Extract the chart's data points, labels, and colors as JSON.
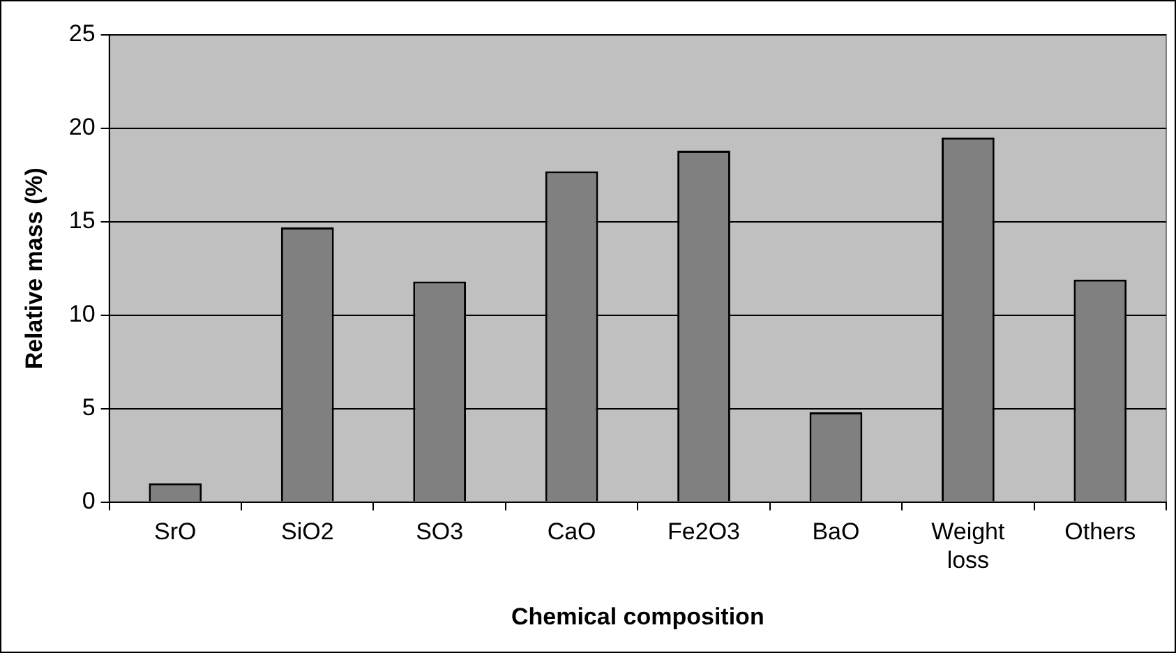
{
  "chart_data": {
    "type": "bar",
    "xlabel": "Chemical composition",
    "ylabel": "Relative mass (%)",
    "categories": [
      "SrO",
      "SiO2",
      "SO3",
      "CaO",
      "Fe2O3",
      "BaO",
      "Weight loss",
      "Others"
    ],
    "values": [
      1.0,
      14.7,
      11.8,
      17.7,
      18.8,
      4.8,
      19.5,
      11.9
    ],
    "color": "#808080",
    "ylim": [
      0,
      25
    ],
    "yticks": [
      0,
      5,
      10,
      15,
      20,
      25
    ],
    "grid": "y",
    "legend": false
  }
}
